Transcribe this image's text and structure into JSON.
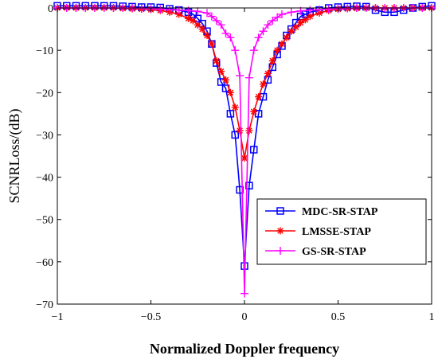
{
  "chart_data": {
    "type": "line",
    "title": "",
    "xlabel": "Normalized Doppler frequency",
    "ylabel": "SCNRLoss/(dB)",
    "xlim": [
      -1,
      1
    ],
    "ylim": [
      -70,
      0
    ],
    "x_ticks": [
      -1,
      -0.5,
      0,
      0.5,
      1
    ],
    "x_tick_labels": [
      "−1",
      "−0.5",
      "0",
      "0.5",
      "1"
    ],
    "y_ticks": [
      0,
      -10,
      -20,
      -30,
      -40,
      -50,
      -60,
      -70
    ],
    "y_tick_labels": [
      "0",
      "−10",
      "−20",
      "−30",
      "−40",
      "−50",
      "−60",
      "−70"
    ],
    "grid": false,
    "legend_position": "bottom-right",
    "series": [
      {
        "name": "MDC-SR-STAP",
        "color": "#0000ff",
        "marker": "square",
        "points": [
          [
            -1.0,
            0.5
          ],
          [
            -0.95,
            0.5
          ],
          [
            -0.9,
            0.5
          ],
          [
            -0.85,
            0.5
          ],
          [
            -0.8,
            0.5
          ],
          [
            -0.75,
            0.5
          ],
          [
            -0.7,
            0.5
          ],
          [
            -0.65,
            0.4
          ],
          [
            -0.6,
            0.3
          ],
          [
            -0.55,
            0.2
          ],
          [
            -0.5,
            0.2
          ],
          [
            -0.45,
            0.1
          ],
          [
            -0.4,
            -0.2
          ],
          [
            -0.35,
            -0.5
          ],
          [
            -0.3,
            -1.0
          ],
          [
            -0.275,
            -1.5
          ],
          [
            -0.25,
            -2.5
          ],
          [
            -0.225,
            -3.7
          ],
          [
            -0.2,
            -5.5
          ],
          [
            -0.175,
            -8.5
          ],
          [
            -0.15,
            -13.0
          ],
          [
            -0.125,
            -17.5
          ],
          [
            -0.1,
            -19.0
          ],
          [
            -0.075,
            -25.0
          ],
          [
            -0.05,
            -30.0
          ],
          [
            -0.025,
            -43.0
          ],
          [
            0.0,
            -61.0
          ],
          [
            0.025,
            -42.0
          ],
          [
            0.05,
            -33.5
          ],
          [
            0.075,
            -25.0
          ],
          [
            0.1,
            -21.0
          ],
          [
            0.125,
            -17.0
          ],
          [
            0.15,
            -14.0
          ],
          [
            0.175,
            -11.0
          ],
          [
            0.2,
            -9.0
          ],
          [
            0.225,
            -6.5
          ],
          [
            0.25,
            -5.0
          ],
          [
            0.275,
            -3.5
          ],
          [
            0.3,
            -2.0
          ],
          [
            0.325,
            -1.5
          ],
          [
            0.35,
            -1.0
          ],
          [
            0.4,
            -0.5
          ],
          [
            0.45,
            0.0
          ],
          [
            0.5,
            0.2
          ],
          [
            0.55,
            0.3
          ],
          [
            0.6,
            0.4
          ],
          [
            0.65,
            0.3
          ],
          [
            0.7,
            -0.5
          ],
          [
            0.75,
            -1.0
          ],
          [
            0.8,
            -1.0
          ],
          [
            0.85,
            -0.5
          ],
          [
            0.9,
            0.0
          ],
          [
            0.95,
            0.3
          ],
          [
            1.0,
            0.5
          ]
        ]
      },
      {
        "name": "LMSSE-STAP",
        "color": "#ff0000",
        "marker": "asterisk",
        "points": [
          [
            -1.0,
            0.0
          ],
          [
            -0.95,
            0.0
          ],
          [
            -0.9,
            0.0
          ],
          [
            -0.85,
            0.0
          ],
          [
            -0.8,
            0.0
          ],
          [
            -0.75,
            0.0
          ],
          [
            -0.7,
            0.0
          ],
          [
            -0.65,
            -0.1
          ],
          [
            -0.6,
            -0.2
          ],
          [
            -0.55,
            -0.3
          ],
          [
            -0.5,
            -0.4
          ],
          [
            -0.45,
            -0.6
          ],
          [
            -0.4,
            -1.0
          ],
          [
            -0.35,
            -1.5
          ],
          [
            -0.3,
            -2.5
          ],
          [
            -0.275,
            -3.0
          ],
          [
            -0.25,
            -4.0
          ],
          [
            -0.225,
            -5.0
          ],
          [
            -0.2,
            -6.5
          ],
          [
            -0.175,
            -8.5
          ],
          [
            -0.15,
            -12.5
          ],
          [
            -0.125,
            -15.0
          ],
          [
            -0.1,
            -17.0
          ],
          [
            -0.075,
            -20.0
          ],
          [
            -0.05,
            -23.5
          ],
          [
            -0.025,
            -29.0
          ],
          [
            0.0,
            -35.5
          ],
          [
            0.025,
            -29.0
          ],
          [
            0.05,
            -24.5
          ],
          [
            0.075,
            -21.0
          ],
          [
            0.1,
            -18.0
          ],
          [
            0.125,
            -15.5
          ],
          [
            0.15,
            -12.5
          ],
          [
            0.175,
            -10.0
          ],
          [
            0.2,
            -8.5
          ],
          [
            0.225,
            -7.0
          ],
          [
            0.25,
            -5.5
          ],
          [
            0.275,
            -4.5
          ],
          [
            0.3,
            -3.5
          ],
          [
            0.325,
            -2.8
          ],
          [
            0.35,
            -2.0
          ],
          [
            0.4,
            -1.2
          ],
          [
            0.45,
            -0.6
          ],
          [
            0.5,
            -0.3
          ],
          [
            0.55,
            -0.2
          ],
          [
            0.6,
            -0.1
          ],
          [
            0.65,
            0.0
          ],
          [
            0.7,
            0.0
          ],
          [
            0.75,
            0.0
          ],
          [
            0.8,
            0.0
          ],
          [
            0.85,
            0.0
          ],
          [
            0.9,
            0.0
          ],
          [
            0.95,
            0.0
          ],
          [
            1.0,
            0.0
          ]
        ]
      },
      {
        "name": "GS-SR-STAP",
        "color": "#ff00ff",
        "marker": "plus",
        "points": [
          [
            -1.0,
            0.0
          ],
          [
            -0.95,
            0.0
          ],
          [
            -0.9,
            0.0
          ],
          [
            -0.85,
            0.0
          ],
          [
            -0.8,
            0.0
          ],
          [
            -0.75,
            0.0
          ],
          [
            -0.7,
            0.0
          ],
          [
            -0.65,
            0.0
          ],
          [
            -0.6,
            0.0
          ],
          [
            -0.55,
            -0.1
          ],
          [
            -0.5,
            -0.2
          ],
          [
            -0.45,
            -0.3
          ],
          [
            -0.4,
            -0.4
          ],
          [
            -0.35,
            -0.5
          ],
          [
            -0.3,
            -0.6
          ],
          [
            -0.25,
            -0.8
          ],
          [
            -0.2,
            -1.2
          ],
          [
            -0.175,
            -2.0
          ],
          [
            -0.15,
            -3.0
          ],
          [
            -0.125,
            -4.0
          ],
          [
            -0.1,
            -6.0
          ],
          [
            -0.075,
            -7.0
          ],
          [
            -0.05,
            -10.0
          ],
          [
            -0.025,
            -16.0
          ],
          [
            0.0,
            -67.5
          ],
          [
            0.025,
            -16.5
          ],
          [
            0.05,
            -10.0
          ],
          [
            0.075,
            -7.0
          ],
          [
            0.1,
            -5.5
          ],
          [
            0.125,
            -4.0
          ],
          [
            0.15,
            -3.0
          ],
          [
            0.175,
            -2.2
          ],
          [
            0.2,
            -1.5
          ],
          [
            0.25,
            -1.0
          ],
          [
            0.3,
            -0.7
          ],
          [
            0.35,
            -0.5
          ],
          [
            0.4,
            -0.4
          ],
          [
            0.45,
            -0.3
          ],
          [
            0.5,
            -0.2
          ],
          [
            0.55,
            -0.1
          ],
          [
            0.6,
            0.0
          ],
          [
            0.65,
            0.0
          ],
          [
            0.7,
            0.0
          ],
          [
            0.75,
            0.0
          ],
          [
            0.8,
            0.0
          ],
          [
            0.85,
            0.0
          ],
          [
            0.9,
            0.0
          ],
          [
            0.95,
            0.0
          ],
          [
            1.0,
            0.0
          ]
        ]
      }
    ]
  }
}
